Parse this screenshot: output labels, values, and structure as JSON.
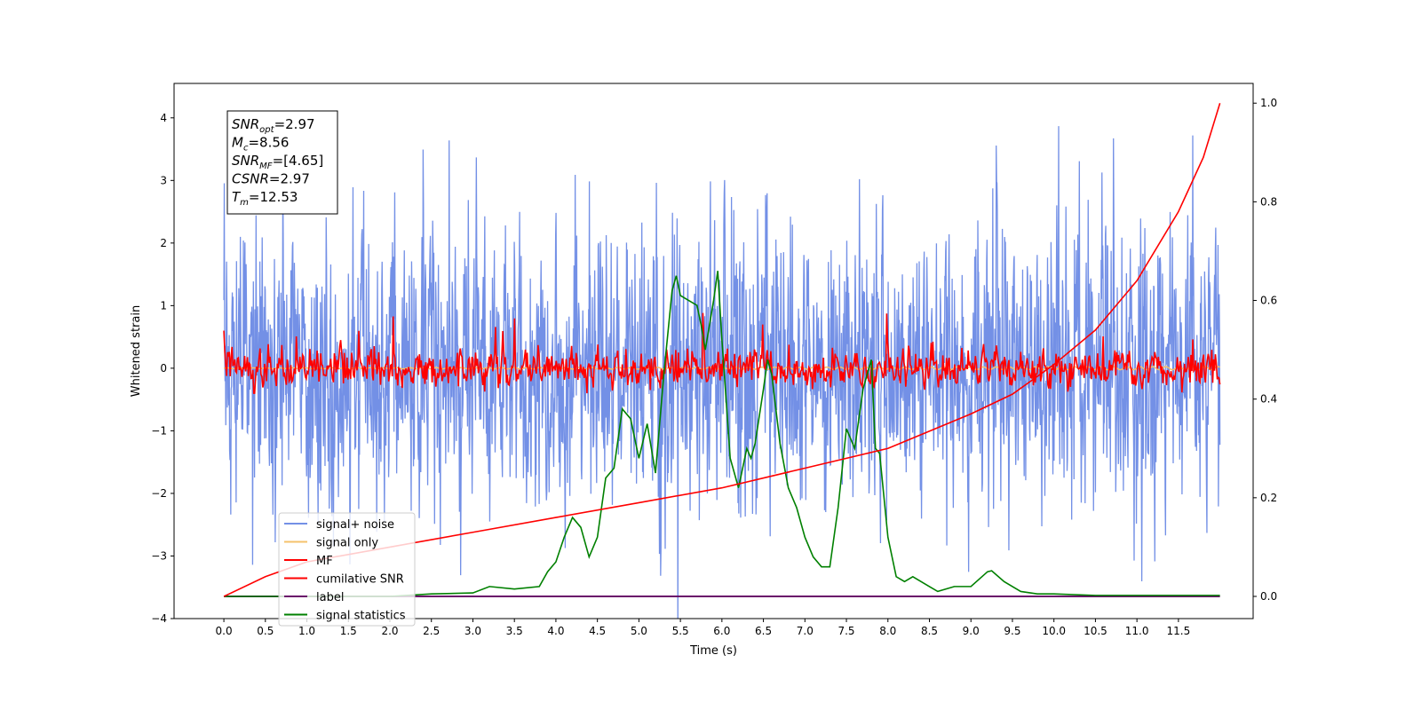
{
  "chart_data": {
    "type": "line",
    "xlabel": "Time (s)",
    "ylabel": "Whitened strain",
    "xlim": [
      -0.6,
      12.4
    ],
    "ylim": [
      -4.0,
      4.55
    ],
    "ylim_right": [
      -0.045,
      1.04
    ],
    "x_ticks": [
      0.0,
      0.5,
      1.0,
      1.5,
      2.0,
      2.5,
      3.0,
      3.5,
      4.0,
      4.5,
      5.0,
      5.5,
      6.0,
      6.5,
      7.0,
      7.5,
      8.0,
      8.5,
      9.0,
      9.5,
      10.0,
      10.5,
      11.0,
      11.5
    ],
    "x_tick_labels": [
      "0.0",
      "0.5",
      "1.0",
      "1.5",
      "2.0",
      "2.5",
      "3.0",
      "3.5",
      "4.0",
      "4.5",
      "5.0",
      "5.5",
      "6.0",
      "6.5",
      "7.0",
      "7.5",
      "8.0",
      "8.5",
      "9.0",
      "9.5",
      "10.0",
      "10.5",
      "11.0",
      "11.5"
    ],
    "y_ticks": [
      -4,
      -3,
      -2,
      -1,
      0,
      1,
      2,
      3,
      4
    ],
    "y_tick_labels": [
      "−4",
      "−3",
      "−2",
      "−1",
      "0",
      "1",
      "2",
      "3",
      "4"
    ],
    "y_ticks_right": [
      0.0,
      0.2,
      0.4,
      0.6,
      0.8,
      1.0
    ],
    "y_tick_labels_right": [
      "0.0",
      "0.2",
      "0.4",
      "0.6",
      "0.8",
      "1.0"
    ],
    "grid": false,
    "legend_position": "lower-left",
    "colors": {
      "signal_noise": "#7390e6",
      "signal_only": "#f5c26b",
      "mf": "#ff0000",
      "cumulative_snr": "#ff0000",
      "label": "#6a0d6a",
      "signal_statistics": "#008000"
    },
    "annotation": {
      "lines": [
        {
          "var": "SNR",
          "sub": "opt",
          "rest": "=2.97"
        },
        {
          "var": "M",
          "sub": "c",
          "rest": "=8.56"
        },
        {
          "var": "SNR",
          "sub": "MF",
          "rest": "=[4.65]"
        },
        {
          "var": "CSNR",
          "sub": "",
          "rest": "=2.97"
        },
        {
          "var": "T",
          "sub": "m",
          "rest": "=12.53"
        }
      ]
    },
    "series": [
      {
        "name": "signal+ noise",
        "axis": "left",
        "kind": "noise",
        "x_range": [
          0.0,
          12.0
        ],
        "approx_amplitude": 1.0,
        "approx_extremes": [
          -3.6,
          4.15
        ]
      },
      {
        "name": "signal only",
        "axis": "left",
        "kind": "flat",
        "x_range": [
          0.0,
          12.0
        ],
        "approx_amplitude": 0.02
      },
      {
        "name": "MF",
        "axis": "left",
        "kind": "noise",
        "x_range": [
          0.0,
          12.0
        ],
        "approx_amplitude": 0.15
      },
      {
        "name": "cumilative SNR",
        "axis": "right",
        "x": [
          0.0,
          0.5,
          1.0,
          2.0,
          3.0,
          4.0,
          5.0,
          6.0,
          7.0,
          8.0,
          9.0,
          9.5,
          10.0,
          10.5,
          11.0,
          11.5,
          11.8,
          12.0
        ],
        "y": [
          0.0,
          0.04,
          0.07,
          0.1,
          0.13,
          0.16,
          0.19,
          0.22,
          0.26,
          0.3,
          0.37,
          0.41,
          0.47,
          0.54,
          0.64,
          0.78,
          0.89,
          1.0
        ]
      },
      {
        "name": "label",
        "axis": "right",
        "x": [
          0.0,
          12.0
        ],
        "y": [
          0.0,
          0.0
        ]
      },
      {
        "name": "signal statistics",
        "axis": "right",
        "x": [
          0.0,
          1.0,
          2.0,
          2.5,
          3.0,
          3.2,
          3.5,
          3.8,
          3.9,
          4.0,
          4.1,
          4.2,
          4.3,
          4.4,
          4.5,
          4.6,
          4.7,
          4.8,
          4.9,
          5.0,
          5.1,
          5.2,
          5.3,
          5.4,
          5.45,
          5.5,
          5.6,
          5.7,
          5.75,
          5.8,
          5.9,
          5.95,
          6.0,
          6.1,
          6.2,
          6.3,
          6.35,
          6.4,
          6.5,
          6.55,
          6.6,
          6.7,
          6.8,
          6.9,
          7.0,
          7.1,
          7.2,
          7.3,
          7.4,
          7.5,
          7.55,
          7.6,
          7.7,
          7.8,
          7.85,
          7.9,
          8.0,
          8.1,
          8.2,
          8.3,
          8.5,
          8.6,
          8.8,
          9.0,
          9.2,
          9.25,
          9.4,
          9.6,
          9.8,
          10.0,
          10.5,
          11.0,
          11.5,
          12.0
        ],
        "y": [
          0.0,
          0.0,
          0.0,
          0.005,
          0.007,
          0.02,
          0.015,
          0.02,
          0.05,
          0.07,
          0.12,
          0.16,
          0.14,
          0.08,
          0.12,
          0.24,
          0.26,
          0.38,
          0.36,
          0.28,
          0.35,
          0.25,
          0.45,
          0.62,
          0.65,
          0.61,
          0.6,
          0.59,
          0.55,
          0.5,
          0.6,
          0.66,
          0.52,
          0.28,
          0.22,
          0.3,
          0.28,
          0.31,
          0.42,
          0.48,
          0.45,
          0.31,
          0.22,
          0.18,
          0.12,
          0.08,
          0.06,
          0.06,
          0.18,
          0.34,
          0.32,
          0.3,
          0.42,
          0.48,
          0.3,
          0.29,
          0.12,
          0.04,
          0.03,
          0.04,
          0.02,
          0.01,
          0.02,
          0.02,
          0.05,
          0.052,
          0.03,
          0.01,
          0.005,
          0.005,
          0.002,
          0.002,
          0.002,
          0.002
        ]
      }
    ]
  }
}
